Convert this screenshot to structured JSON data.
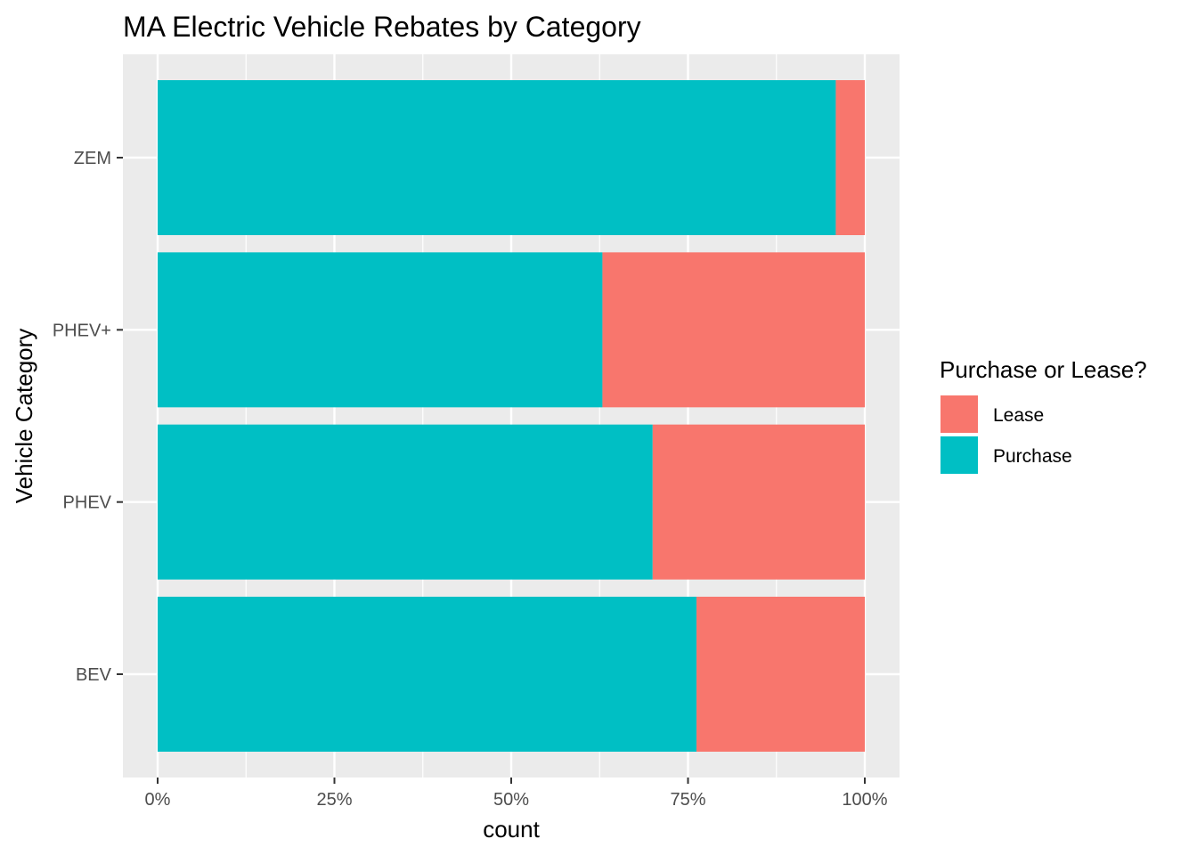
{
  "chart_data": {
    "type": "bar",
    "orientation": "horizontal",
    "stacked": true,
    "normalized": true,
    "title": "MA Electric Vehicle Rebates by Category",
    "xlabel": "count",
    "ylabel": "Vehicle Category",
    "xlim": [
      0,
      1
    ],
    "x_ticks": [
      "0%",
      "25%",
      "50%",
      "75%",
      "100%"
    ],
    "x_tick_values": [
      0,
      0.25,
      0.5,
      0.75,
      1.0
    ],
    "categories": [
      "BEV",
      "PHEV",
      "PHEV+",
      "ZEM"
    ],
    "series": [
      {
        "name": "Purchase",
        "color": "#00BFC4",
        "values": [
          0.762,
          0.7,
          0.629,
          0.959
        ]
      },
      {
        "name": "Lease",
        "color": "#F8766D",
        "values": [
          0.238,
          0.3,
          0.371,
          0.041
        ]
      }
    ],
    "grid": true,
    "legend": {
      "title": "Purchase or Lease?",
      "placement": "right",
      "entries": [
        {
          "label": "Lease",
          "color": "#F8766D"
        },
        {
          "label": "Purchase",
          "color": "#00BFC4"
        }
      ]
    },
    "panel_background": "#EBEBEB",
    "grid_color": "#FFFFFF"
  }
}
